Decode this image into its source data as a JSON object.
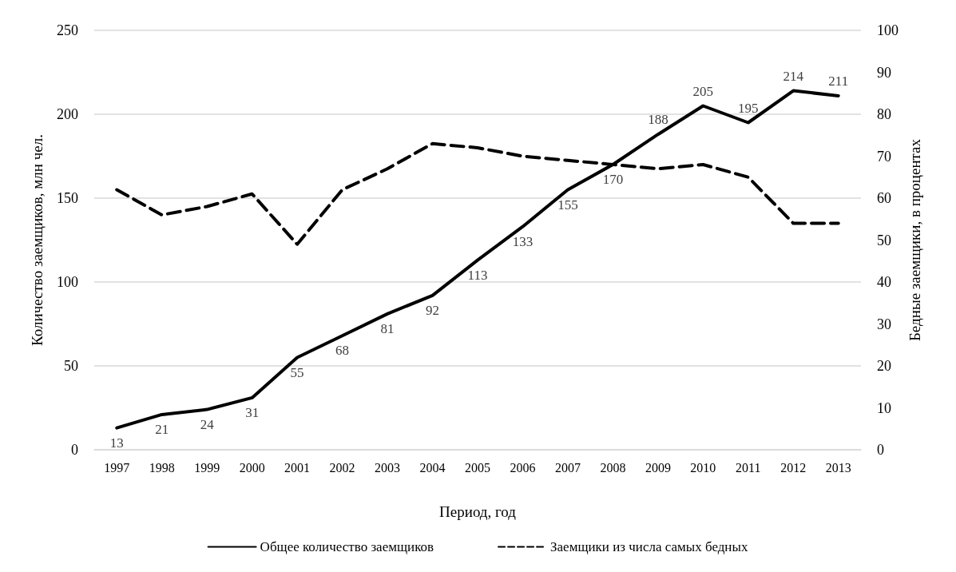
{
  "chart_data": {
    "type": "line",
    "xlabel": "Период, год",
    "ylabel": "Количество заемщиков, млн чел.",
    "y2label": "Бедные заемщики, в процентах",
    "categories": [
      "1997",
      "1998",
      "1999",
      "2000",
      "2001",
      "2002",
      "2003",
      "2004",
      "2005",
      "2006",
      "2007",
      "2008",
      "2009",
      "2010",
      "2011",
      "2012",
      "2013"
    ],
    "series": [
      {
        "name": "Общее количество заемщиков",
        "color": "#000000",
        "line_style": "solid",
        "values": [
          13,
          21,
          24,
          31,
          55,
          68,
          81,
          92,
          113,
          133,
          155,
          170,
          188,
          205,
          195,
          214,
          211
        ],
        "value_labels": [
          "13",
          "21",
          "24",
          "31",
          "55",
          "68",
          "81",
          "92",
          "113",
          "133",
          "155",
          "170",
          "188",
          "205",
          "195",
          "214",
          "211"
        ]
      },
      {
        "name": "Заемщики из числа самых бедных",
        "color": "#000000",
        "line_style": "dashed",
        "axis": "y2",
        "values": [
          62,
          56,
          58,
          61,
          49,
          62,
          67,
          73,
          72,
          70,
          69,
          68,
          67,
          68,
          65,
          54,
          54
        ]
      }
    ],
    "ylim": [
      0,
      250
    ],
    "yticks": [
      0,
      50,
      100,
      150,
      200,
      250
    ],
    "y2lim": [
      0,
      100
    ],
    "y2ticks": [
      0,
      10,
      20,
      30,
      40,
      50,
      60,
      70,
      80,
      90,
      100
    ],
    "grid": "y",
    "legend": "bottom",
    "marker": "none"
  }
}
